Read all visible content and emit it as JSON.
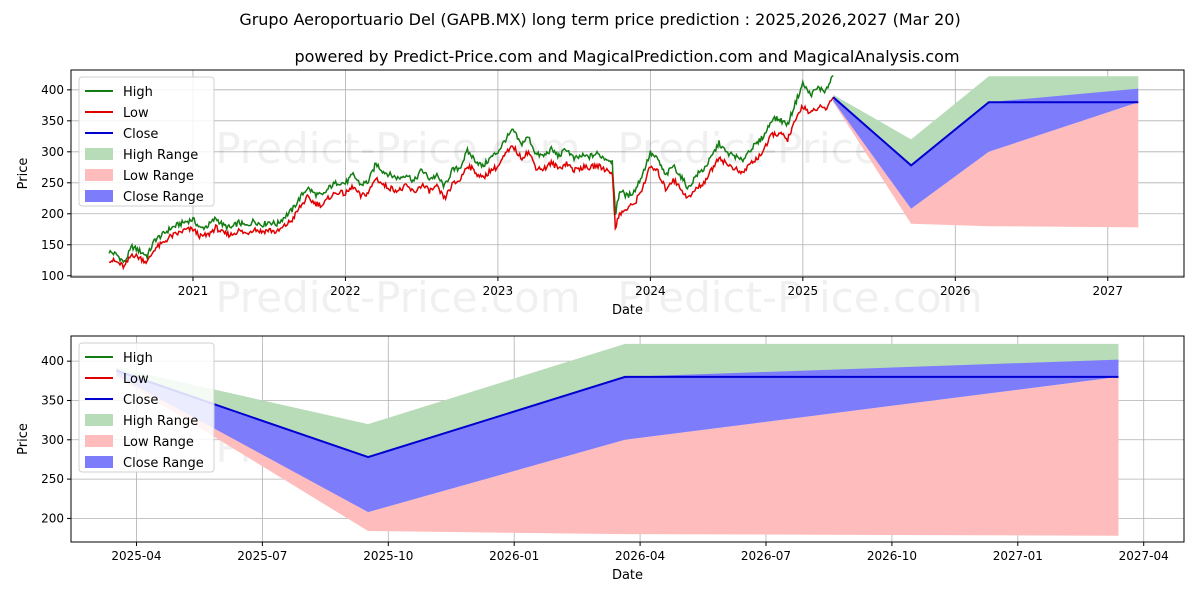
{
  "title": "Grupo Aeroportuario Del (GAPB.MX) long term price prediction : 2025,2026,2027 (Mar 20)",
  "subtitle": "powered by Predict-Price.com and MagicalPrediction.com and MagicalAnalysis.com",
  "watermark": "Predict-Price.com",
  "colors": {
    "high": "#137c13",
    "low": "#e00000",
    "close": "#0000d0",
    "high_range": "#b7dcb7",
    "low_range": "#ffbcbc",
    "close_range": "#7d7dfb"
  },
  "chart_data": [
    {
      "type": "line",
      "name": "history-and-forecast",
      "xlabel": "Date",
      "ylabel": "Price",
      "xlim": [
        2020.2,
        2027.5
      ],
      "ylim": [
        98,
        432
      ],
      "x_ticks": [
        2021,
        2022,
        2023,
        2024,
        2025,
        2026,
        2027
      ],
      "x_tick_labels": [
        "2021",
        "2022",
        "2023",
        "2024",
        "2025",
        "2026",
        "2027"
      ],
      "y_ticks": [
        100,
        150,
        200,
        250,
        300,
        350,
        400
      ],
      "y_tick_labels": [
        "100",
        "150",
        "200",
        "250",
        "300",
        "350",
        "400"
      ],
      "grid": true,
      "legend": {
        "position": "top-left",
        "entries": [
          "High",
          "Low",
          "Close",
          "High Range",
          "Low Range",
          "Close Range"
        ]
      },
      "history": {
        "x": [
          2020.45,
          2020.5,
          2020.55,
          2020.6,
          2020.65,
          2020.7,
          2020.75,
          2020.8,
          2020.85,
          2020.9,
          2020.95,
          2021.0,
          2021.05,
          2021.1,
          2021.15,
          2021.2,
          2021.25,
          2021.3,
          2021.35,
          2021.4,
          2021.45,
          2021.5,
          2021.55,
          2021.6,
          2021.65,
          2021.7,
          2021.75,
          2021.8,
          2021.85,
          2021.9,
          2021.95,
          2022.0,
          2022.05,
          2022.1,
          2022.15,
          2022.2,
          2022.25,
          2022.3,
          2022.35,
          2022.4,
          2022.45,
          2022.5,
          2022.55,
          2022.6,
          2022.65,
          2022.7,
          2022.75,
          2022.8,
          2022.85,
          2022.9,
          2022.95,
          2023.0,
          2023.05,
          2023.1,
          2023.15,
          2023.2,
          2023.25,
          2023.3,
          2023.35,
          2023.4,
          2023.45,
          2023.5,
          2023.55,
          2023.6,
          2023.65,
          2023.7,
          2023.75,
          2023.77,
          2023.8,
          2023.85,
          2023.9,
          2023.95,
          2024.0,
          2024.05,
          2024.1,
          2024.15,
          2024.2,
          2024.25,
          2024.3,
          2024.35,
          2024.4,
          2024.45,
          2024.5,
          2024.55,
          2024.6,
          2024.65,
          2024.7,
          2024.75,
          2024.8,
          2024.85,
          2024.9,
          2024.95,
          2025.0,
          2025.05,
          2025.1,
          2025.15,
          2025.2
        ],
        "high": [
          139,
          134,
          121,
          147,
          140,
          132,
          158,
          166,
          176,
          182,
          187,
          191,
          176,
          181,
          193,
          181,
          177,
          186,
          180,
          189,
          182,
          187,
          183,
          195,
          206,
          225,
          242,
          232,
          229,
          244,
          251,
          249,
          263,
          247,
          252,
          281,
          268,
          262,
          257,
          264,
          252,
          271,
          257,
          261,
          244,
          270,
          274,
          301,
          287,
          276,
          290,
          300,
          320,
          335,
          312,
          324,
          296,
          293,
          304,
          293,
          305,
          288,
          293,
          292,
          297,
          290,
          285,
          200,
          238,
          228,
          238,
          265,
          298,
          287,
          261,
          278,
          260,
          241,
          262,
          272,
          291,
          314,
          298,
          294,
          285,
          303,
          313,
          328,
          354,
          352,
          344,
          378,
          410,
          392,
          403,
          398,
          423
        ],
        "low": [
          126,
          122,
          114,
          135,
          129,
          122,
          144,
          152,
          163,
          168,
          174,
          175,
          163,
          166,
          178,
          168,
          166,
          173,
          168,
          176,
          171,
          174,
          170,
          180,
          190,
          210,
          226,
          217,
          214,
          228,
          235,
          232,
          244,
          228,
          234,
          258,
          246,
          241,
          237,
          245,
          234,
          247,
          237,
          243,
          224,
          247,
          254,
          279,
          268,
          257,
          270,
          276,
          296,
          309,
          290,
          300,
          275,
          272,
          282,
          273,
          282,
          270,
          275,
          274,
          278,
          272,
          267,
          179,
          200,
          208,
          218,
          243,
          276,
          267,
          240,
          256,
          240,
          225,
          240,
          250,
          270,
          292,
          280,
          274,
          264,
          280,
          289,
          305,
          329,
          329,
          320,
          349,
          375,
          361,
          372,
          369,
          388
        ],
        "close": []
      },
      "forecast": {
        "x": [
          2025.2,
          2025.71,
          2026.22,
          2027.2
        ],
        "close": [
          388,
          278,
          380,
          380
        ],
        "high_range": [
          [
            388,
            392
          ],
          [
            278,
            320
          ],
          [
            300,
            422
          ],
          [
            402,
            422
          ]
        ],
        "low_range": [
          [
            380,
            385
          ],
          [
            184,
            208
          ],
          [
            180,
            300
          ],
          [
            178,
            380
          ]
        ],
        "close_range": [
          [
            382,
            390
          ],
          [
            208,
            278
          ],
          [
            300,
            380
          ],
          [
            380,
            402
          ]
        ]
      }
    },
    {
      "type": "area",
      "name": "forecast-zoom",
      "xlabel": "Date",
      "ylabel": "Price",
      "xlim": [
        2025.12,
        2027.33
      ],
      "ylim": [
        170,
        432
      ],
      "x_ticks": [
        2025.25,
        2025.5,
        2025.75,
        2026.0,
        2026.25,
        2026.5,
        2026.75,
        2027.0,
        2027.25
      ],
      "x_tick_labels": [
        "2025-04",
        "2025-07",
        "2025-10",
        "2026-01",
        "2026-04",
        "2026-07",
        "2026-10",
        "2027-01",
        "2027-04"
      ],
      "y_ticks": [
        200,
        250,
        300,
        350,
        400
      ],
      "y_tick_labels": [
        "200",
        "250",
        "300",
        "350",
        "400"
      ],
      "grid": true,
      "legend": {
        "position": "top-left",
        "entries": [
          "High",
          "Low",
          "Close",
          "High Range",
          "Low Range",
          "Close Range"
        ]
      },
      "forecast": {
        "x": [
          2025.21,
          2025.71,
          2026.22,
          2027.2
        ],
        "close": [
          388,
          278,
          380,
          380
        ],
        "high_range": [
          [
            388,
            392
          ],
          [
            278,
            320
          ],
          [
            300,
            422
          ],
          [
            402,
            422
          ]
        ],
        "low_range": [
          [
            380,
            385
          ],
          [
            184,
            208
          ],
          [
            180,
            300
          ],
          [
            178,
            380
          ]
        ],
        "close_range": [
          [
            382,
            390
          ],
          [
            208,
            278
          ],
          [
            300,
            380
          ],
          [
            380,
            402
          ]
        ]
      }
    }
  ]
}
